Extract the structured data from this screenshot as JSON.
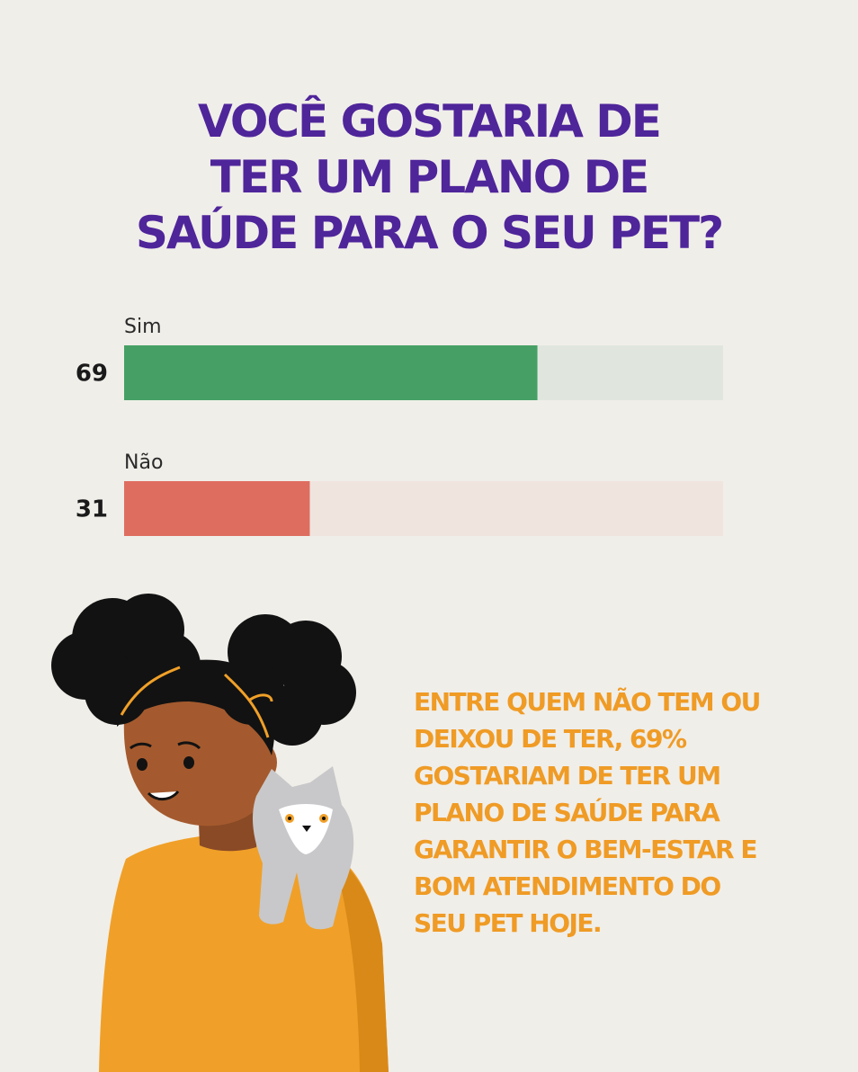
{
  "title_lines": [
    "VOCÊ GOSTARIA DE",
    "TER UM PLANO DE",
    "SAÚDE PARA O SEU PET?"
  ],
  "chart_data": {
    "type": "bar",
    "orientation": "horizontal",
    "categories": [
      "Sim",
      "Não"
    ],
    "values": [
      69,
      31
    ],
    "ylim": [
      0,
      100
    ],
    "colors": [
      "#46a066",
      "#de6d60"
    ],
    "track_colors": [
      "#e0e6de",
      "#f0e4de"
    ],
    "grid": false,
    "legend": "none"
  },
  "summary_lines": [
    "ENTRE QUEM NÃO TEM OU",
    "DEIXOU DE TER, 69%",
    "GOSTARIAM DE TER UM",
    "PLANO DE SAÚDE PARA",
    "GARANTIR O BEM-ESTAR E",
    "BOM ATENDIMENTO DO",
    "SEU PET HOJE."
  ],
  "colors": {
    "background": "#f0eee9",
    "title": "#4f259a",
    "summary": "#ef9b25"
  },
  "illustration": {
    "subject": "girl-holding-cat"
  }
}
